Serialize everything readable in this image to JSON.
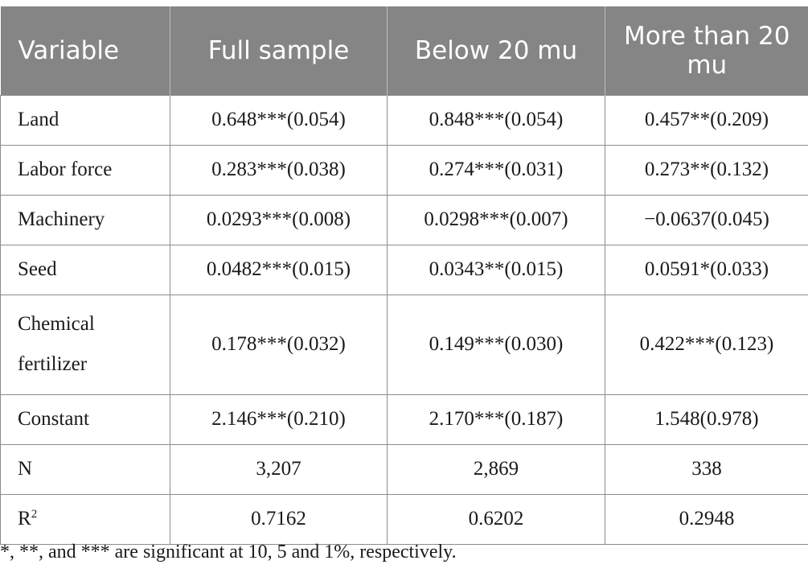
{
  "table": {
    "headers": [
      "Variable",
      "Full sample",
      "Below 20 mu",
      "More than 20 mu"
    ],
    "rows": [
      {
        "variable": "Land",
        "full": "0.648***(0.054)",
        "below": "0.848***(0.054)",
        "more": "0.457**(0.209)"
      },
      {
        "variable": "Labor force",
        "full": "0.283***(0.038)",
        "below": "0.274***(0.031)",
        "more": "0.273**(0.132)"
      },
      {
        "variable": "Machinery",
        "full": "0.0293***(0.008)",
        "below": "0.0298***(0.007)",
        "more": "−0.0637(0.045)"
      },
      {
        "variable": "Seed",
        "full": "0.0482***(0.015)",
        "below": "0.0343**(0.015)",
        "more": "0.0591*(0.033)"
      },
      {
        "variable": "Chemical fertilizer",
        "full": "0.178***(0.032)",
        "below": "0.149***(0.030)",
        "more": "0.422***(0.123)"
      },
      {
        "variable": "Constant",
        "full": "2.146***(0.210)",
        "below": "2.170***(0.187)",
        "more": "1.548(0.978)"
      },
      {
        "variable": "N",
        "full": "3,207",
        "below": "2,869",
        "more": "338"
      },
      {
        "variable_base": "R",
        "variable_sup": "2",
        "full": "0.7162",
        "below": "0.6202",
        "more": "0.2948"
      }
    ]
  },
  "footnote": "*, **, and *** are significant at 10, 5 and 1%, respectively."
}
